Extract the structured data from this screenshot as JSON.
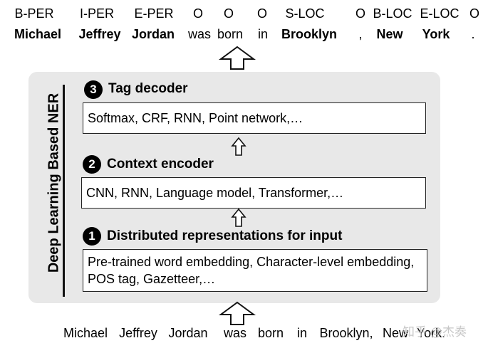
{
  "tags": [
    "B-PER",
    "I-PER",
    "E-PER",
    "O",
    "O",
    "O",
    "S-LOC",
    "O",
    "B-LOC",
    "E-LOC",
    "O"
  ],
  "tokens": [
    {
      "text": "Michael",
      "bold": true
    },
    {
      "text": "Jeffrey",
      "bold": true
    },
    {
      "text": "Jordan",
      "bold": true
    },
    {
      "text": "was",
      "bold": false
    },
    {
      "text": "born",
      "bold": false
    },
    {
      "text": "in",
      "bold": false
    },
    {
      "text": "Brooklyn",
      "bold": true
    },
    {
      "text": ",",
      "bold": false
    },
    {
      "text": "New",
      "bold": true
    },
    {
      "text": "York",
      "bold": true
    },
    {
      "text": ".",
      "bold": false
    }
  ],
  "panel_title": "Deep Learning Based NER",
  "sections": [
    {
      "number": "3",
      "title": "Tag decoder",
      "content": "Softmax, CRF, RNN, Point network,…"
    },
    {
      "number": "2",
      "title": "Context encoder",
      "content": "CNN, RNN, Language model, Transformer,…"
    },
    {
      "number": "1",
      "title": "Distributed representations for input",
      "content": "Pre-trained word embedding, Character-level embedding, POS tag, Gazetteer,…"
    }
  ],
  "input_sentence": [
    "Michael",
    "Jeffrey",
    "Jordan",
    "was",
    "born",
    "in",
    "Brooklyn,",
    "New",
    "York."
  ],
  "watermark": "知乎 @杰奏"
}
